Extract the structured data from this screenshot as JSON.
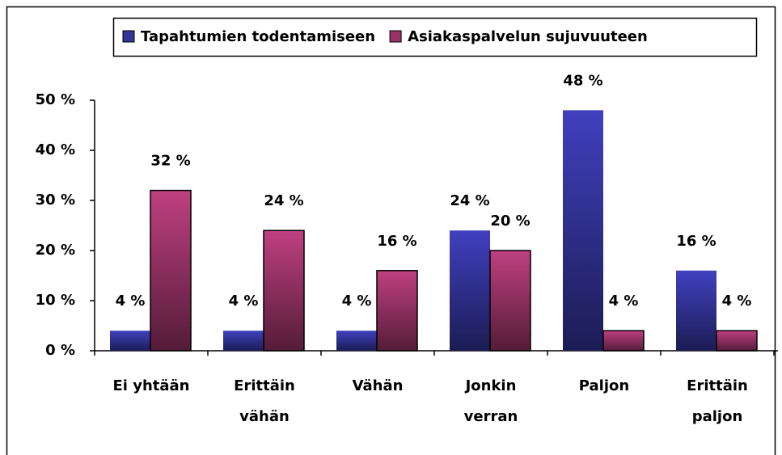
{
  "chart_data": {
    "type": "bar",
    "categories": [
      "Ei yhtään",
      "Erittäin\nvähän",
      "Vähän",
      "Jonkin\nverran",
      "Paljon",
      "Erittäin\npaljon"
    ],
    "series": [
      {
        "name": "Tapahtumien todentamiseen",
        "color": "#333399",
        "values": [
          4,
          4,
          4,
          24,
          48,
          16
        ],
        "value_labels": [
          "4 %",
          "4 %",
          "4 %",
          "24 %",
          "48 %",
          "16 %"
        ]
      },
      {
        "name": "Asiakaspalvelun sujuvuuteen",
        "color": "#993366",
        "values": [
          32,
          24,
          16,
          20,
          4,
          4
        ],
        "value_labels": [
          "32 %",
          "24 %",
          "16 %",
          "20 %",
          "4 %",
          "4 %"
        ]
      }
    ],
    "ylim": [
      0,
      50
    ],
    "yticks": [
      {
        "value": 0,
        "label": "0 %"
      },
      {
        "value": 10,
        "label": "10 %"
      },
      {
        "value": 20,
        "label": "20 %"
      },
      {
        "value": 30,
        "label": "30 %"
      },
      {
        "value": 40,
        "label": "40 %"
      },
      {
        "value": 50,
        "label": "50 %"
      }
    ],
    "legend": "top"
  }
}
